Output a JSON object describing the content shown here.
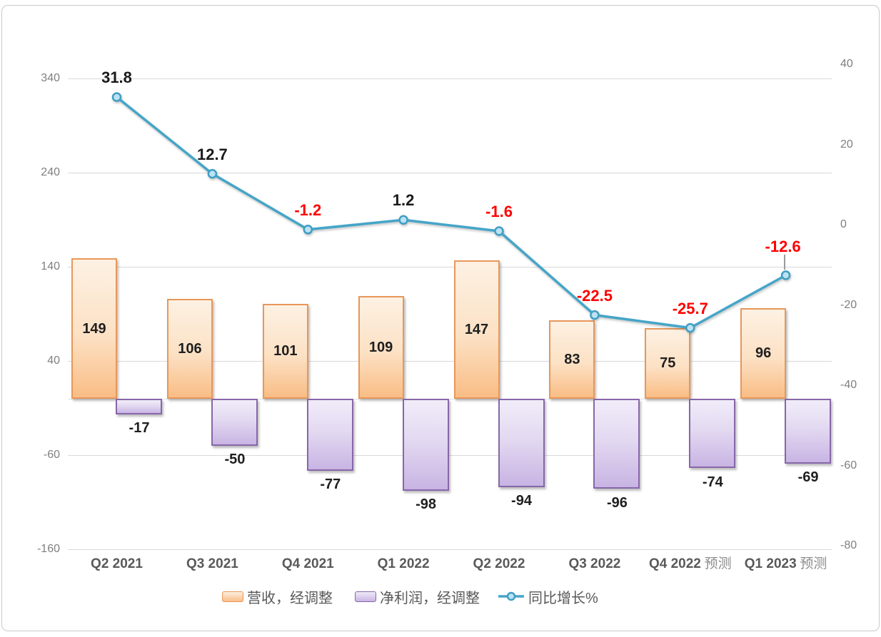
{
  "chart_data": {
    "type": "bar",
    "subtype": "combo-bar-line-dual-axis",
    "categories": [
      {
        "q": "Q2 2021",
        "suffix": ""
      },
      {
        "q": "Q3 2021",
        "suffix": ""
      },
      {
        "q": "Q4 2021",
        "suffix": ""
      },
      {
        "q": "Q1 2022",
        "suffix": ""
      },
      {
        "q": "Q2 2022",
        "suffix": ""
      },
      {
        "q": "Q3 2022",
        "suffix": ""
      },
      {
        "q": "Q4 2022",
        "suffix": "预测"
      },
      {
        "q": "Q1 2023",
        "suffix": "预测"
      }
    ],
    "series": [
      {
        "name": "营收，经调整",
        "type": "bar",
        "axis": "left",
        "values": [
          149,
          106,
          101,
          109,
          147,
          83,
          75,
          96
        ]
      },
      {
        "name": "净利润，经调整",
        "type": "bar",
        "axis": "left",
        "values": [
          -17,
          -50,
          -77,
          -98,
          -94,
          -96,
          -74,
          -69
        ]
      },
      {
        "name": "同比增长%",
        "type": "line",
        "axis": "right",
        "values": [
          31.8,
          12.7,
          -1.2,
          1.2,
          -1.6,
          -22.5,
          -25.7,
          -12.6
        ],
        "label_colors": [
          "black",
          "black",
          "red",
          "black",
          "red",
          "red",
          "red",
          "red"
        ],
        "leader_on_last": true
      }
    ],
    "left_axis": {
      "ticks": [
        340,
        240,
        140,
        40,
        -60,
        -160
      ],
      "min": -160,
      "max": 340
    },
    "right_axis": {
      "ticks": [
        40,
        20,
        0,
        -20,
        -40,
        -60,
        -80
      ],
      "min": -80,
      "max": 40
    },
    "legend_position": "bottom",
    "grid": true,
    "colors": {
      "revenue_fill_light": "#fdf1e3",
      "revenue_fill_dark": "#f9bd85",
      "revenue_border": "#e8975a",
      "profit_fill_light": "#f1ecf9",
      "profit_fill_dark": "#c8b4e3",
      "profit_border": "#8767a9",
      "line": "#45a5c8",
      "marker_fill": "#bde2f2",
      "label_red": "#ff0000",
      "label_black": "#1a1a1a",
      "gridline": "#d9d9d9",
      "axis_text": "#7f7f7f",
      "x_text": "#595959"
    }
  }
}
